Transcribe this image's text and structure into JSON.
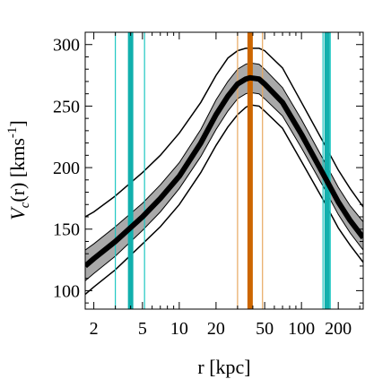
{
  "chart_data": {
    "type": "line",
    "title": "",
    "xlabel": "r [kpc]",
    "ylabel": {
      "base": "V",
      "sub": "c",
      "rest": "(r) [kms",
      "sup": "-1",
      "close": "]"
    },
    "x_scale": "log",
    "xlim": [
      1.7,
      320
    ],
    "ylim": [
      85,
      310
    ],
    "x_ticks": [
      2,
      5,
      10,
      20,
      50,
      100,
      200
    ],
    "x_tick_labels": [
      "2",
      "5",
      "10",
      "20",
      "50",
      "100",
      "200"
    ],
    "y_ticks": [
      100,
      150,
      200,
      250,
      300
    ],
    "y_tick_labels": [
      "100",
      "150",
      "200",
      "250",
      "300"
    ],
    "grid": false,
    "legend": "none",
    "curve": {
      "x": [
        1.7,
        2,
        3,
        5,
        7,
        10,
        15,
        20,
        25,
        30,
        35,
        38,
        45,
        50,
        70,
        100,
        150,
        200,
        250,
        320
      ],
      "y": [
        120,
        126,
        140,
        160,
        175,
        193,
        220,
        243,
        258,
        268,
        272,
        273,
        272,
        268,
        253,
        227,
        195,
        172,
        157,
        143
      ]
    },
    "series": [
      {
        "role": "inner_band_lower",
        "x": [
          1.7,
          2,
          3,
          5,
          7,
          10,
          15,
          20,
          25,
          30,
          35,
          38,
          45,
          50,
          70,
          100,
          150,
          200,
          250,
          320
        ],
        "y": [
          108,
          114,
          128,
          149,
          164,
          183,
          209,
          231,
          246,
          256,
          260,
          261,
          260,
          256,
          242,
          216,
          185,
          162,
          147,
          133
        ]
      },
      {
        "role": "inner_band_upper",
        "x": [
          1.7,
          2,
          3,
          5,
          7,
          10,
          15,
          20,
          25,
          30,
          35,
          38,
          45,
          50,
          70,
          100,
          150,
          200,
          250,
          320
        ],
        "y": [
          133,
          138,
          152,
          171,
          186,
          204,
          231,
          255,
          270,
          280,
          284,
          285,
          284,
          280,
          265,
          239,
          207,
          184,
          169,
          156
        ]
      },
      {
        "role": "outer_lower",
        "x": [
          1.7,
          2,
          3,
          5,
          7,
          10,
          15,
          20,
          25,
          30,
          35,
          38,
          45,
          50,
          70,
          100,
          150,
          200,
          250,
          320
        ],
        "y": [
          97,
          103,
          117,
          138,
          152,
          170,
          196,
          218,
          233,
          243,
          249,
          251,
          250,
          246,
          232,
          205,
          174,
          151,
          137,
          123
        ]
      },
      {
        "role": "outer_upper",
        "x": [
          1.7,
          2,
          3,
          5,
          7,
          10,
          15,
          20,
          25,
          30,
          35,
          38,
          45,
          50,
          70,
          100,
          150,
          200,
          250,
          320
        ],
        "y": [
          160,
          164,
          177,
          196,
          210,
          228,
          253,
          275,
          289,
          295,
          297,
          297,
          297,
          295,
          281,
          253,
          221,
          198,
          183,
          168
        ]
      }
    ],
    "vertical_lines": [
      {
        "x": 3.0,
        "color": "#1fc8c3",
        "kind": "thin"
      },
      {
        "x": 4.0,
        "color": "#12b0ad",
        "kind": "thick"
      },
      {
        "x": 5.2,
        "color": "#1fc8c3",
        "kind": "thin"
      },
      {
        "x": 30,
        "color": "#e8a860",
        "kind": "thin"
      },
      {
        "x": 38,
        "color": "#cc6600",
        "kind": "thick"
      },
      {
        "x": 48,
        "color": "#e8a860",
        "kind": "thin"
      },
      {
        "x": 150,
        "color": "#1fc8c3",
        "kind": "thin"
      },
      {
        "x": 162,
        "color": "#12b0ad",
        "kind": "thick"
      },
      {
        "x": 172,
        "color": "#1fc8c3",
        "kind": "thin"
      }
    ],
    "colors": {
      "band": "#a9a9a9",
      "curve": "#000000",
      "bounds": "#000000"
    }
  }
}
